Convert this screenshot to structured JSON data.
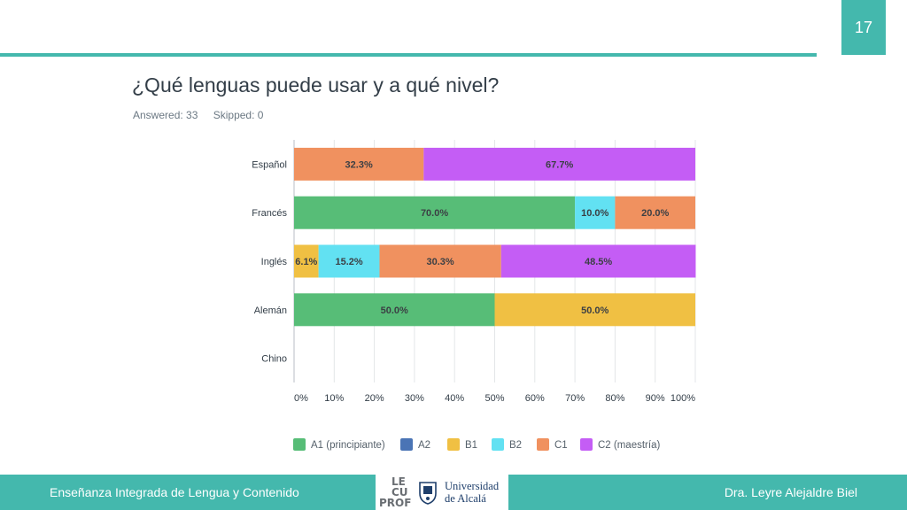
{
  "slide": {
    "page_number": "17"
  },
  "title": "¿Qué lenguas puede usar y a qué nivel?",
  "meta": {
    "answered": "Answered: 33",
    "skipped": "Skipped: 0"
  },
  "chart_data": {
    "type": "bar",
    "orientation": "horizontal",
    "stacked": true,
    "categories": [
      "Español",
      "Francés",
      "Inglés",
      "Alemán",
      "Chino"
    ],
    "series": [
      {
        "name": "A1 (principiante)",
        "color": "#57bd77",
        "values": [
          0,
          70.0,
          0,
          50.0,
          0
        ]
      },
      {
        "name": "A2",
        "color": "#4a74b5",
        "values": [
          0,
          0,
          0,
          0,
          0
        ]
      },
      {
        "name": "B1",
        "color": "#f0c043",
        "values": [
          0,
          0,
          6.1,
          50.0,
          0
        ]
      },
      {
        "name": "B2",
        "color": "#62e1f2",
        "values": [
          0,
          10.0,
          15.2,
          0,
          0
        ]
      },
      {
        "name": "C1",
        "color": "#f0915f",
        "values": [
          32.3,
          20.0,
          30.3,
          0,
          0
        ]
      },
      {
        "name": "C2 (maestría)",
        "color": "#c45df5",
        "values": [
          67.7,
          0,
          48.5,
          0,
          0
        ]
      }
    ],
    "x_ticks": [
      "0%",
      "10%",
      "20%",
      "30%",
      "40%",
      "50%",
      "60%",
      "70%",
      "80%",
      "90%",
      "100%"
    ],
    "xlim": [
      0,
      100
    ],
    "grid": true,
    "legend_position": "bottom"
  },
  "footer": {
    "left": "Enseñanza Integrada de Lengua y Contenido",
    "right": "Dra. Leyre Alejaldre Biel",
    "logo1_letters": [
      "LE",
      "CU",
      "PROF"
    ],
    "logo2_line1": "Universidad",
    "logo2_line2": "de Alcalá"
  }
}
